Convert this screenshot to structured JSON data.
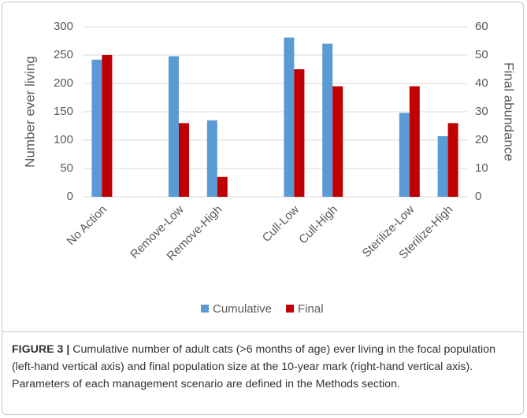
{
  "chart_data": {
    "type": "bar",
    "categories": [
      "No Action",
      null,
      "Remove-Low",
      "Remove-High",
      null,
      "Cull-Low",
      "Cull-High",
      null,
      "Sterilize-Low",
      "Sterilize-High"
    ],
    "series": [
      {
        "name": "Cumulative",
        "color": "#5b9bd5",
        "values": [
          242,
          null,
          248,
          135,
          null,
          281,
          270,
          null,
          148,
          107
        ]
      },
      {
        "name": "Final",
        "color": "#c00000",
        "axis": "y2",
        "values": [
          50,
          null,
          26,
          7,
          null,
          45,
          39,
          null,
          39,
          26
        ]
      }
    ],
    "ylabel": "Number ever living",
    "y2label": "Final abundance",
    "ylim": [
      0,
      300
    ],
    "yticks": [
      0,
      50,
      100,
      150,
      200,
      250,
      300
    ],
    "y2lim": [
      0,
      60
    ],
    "y2ticks": [
      0,
      10,
      20,
      30,
      40,
      50,
      60
    ],
    "grid": true,
    "legend": "bottom"
  },
  "caption": {
    "label": "FIGURE 3 |",
    "text": "Cumulative number of adult cats (>6 months of age) ever living in the focal population (left-hand vertical axis) and final population size at the 10-year mark (right-hand vertical axis). Parameters of each management scenario are defined in the Methods section."
  }
}
